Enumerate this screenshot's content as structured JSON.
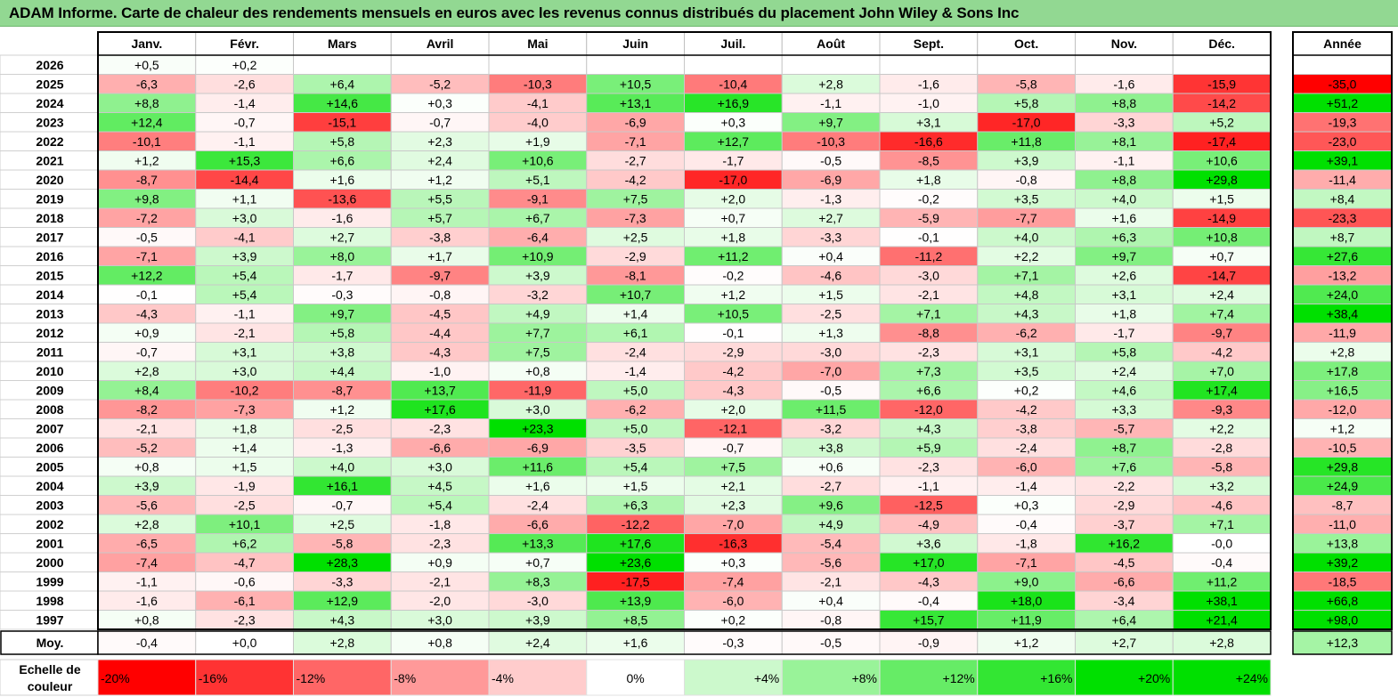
{
  "title": "ADAM Informe. Carte de chaleur des rendements mensuels en euros avec les revenus connus distribués du placement John Wiley & Sons Inc",
  "chart_data": {
    "type": "heatmap",
    "months": [
      "Janv.",
      "Févr.",
      "Mars",
      "Avril",
      "Mai",
      "Juin",
      "Juil.",
      "Août",
      "Sept.",
      "Oct.",
      "Nov.",
      "Déc."
    ],
    "year_header": "Année",
    "rows": [
      {
        "year": "2026",
        "values": [
          "+0,5",
          "+0,2",
          "",
          "",
          "",
          "",
          "",
          "",
          "",
          "",
          "",
          ""
        ],
        "annual": ""
      },
      {
        "year": "2025",
        "values": [
          "-6,3",
          "-2,6",
          "+6,4",
          "-5,2",
          "-10,3",
          "+10,5",
          "-10,4",
          "+2,8",
          "-1,6",
          "-5,8",
          "-1,6",
          "-15,9"
        ],
        "annual": "-35,0"
      },
      {
        "year": "2024",
        "values": [
          "+8,8",
          "-1,4",
          "+14,6",
          "+0,3",
          "-4,1",
          "+13,1",
          "+16,9",
          "-1,1",
          "-1,0",
          "+5,8",
          "+8,8",
          "-14,2"
        ],
        "annual": "+51,2"
      },
      {
        "year": "2023",
        "values": [
          "+12,4",
          "-0,7",
          "-15,1",
          "-0,7",
          "-4,0",
          "-6,9",
          "+0,3",
          "+9,7",
          "+3,1",
          "-17,0",
          "-3,3",
          "+5,2"
        ],
        "annual": "-19,3"
      },
      {
        "year": "2022",
        "values": [
          "-10,1",
          "-1,1",
          "+5,8",
          "+2,3",
          "+1,9",
          "-7,1",
          "+12,7",
          "-10,3",
          "-16,6",
          "+11,8",
          "+8,1",
          "-17,4"
        ],
        "annual": "-23,0"
      },
      {
        "year": "2021",
        "values": [
          "+1,2",
          "+15,3",
          "+6,6",
          "+2,4",
          "+10,6",
          "-2,7",
          "-1,7",
          "-0,5",
          "-8,5",
          "+3,9",
          "-1,1",
          "+10,6"
        ],
        "annual": "+39,1"
      },
      {
        "year": "2020",
        "values": [
          "-8,7",
          "-14,4",
          "+1,6",
          "+1,2",
          "+5,1",
          "-4,2",
          "-17,0",
          "-6,9",
          "+1,8",
          "-0,8",
          "+8,8",
          "+29,8"
        ],
        "annual": "-11,4"
      },
      {
        "year": "2019",
        "values": [
          "+9,8",
          "+1,1",
          "-13,6",
          "+5,5",
          "-9,1",
          "+7,5",
          "+2,0",
          "-1,3",
          "-0,2",
          "+3,5",
          "+4,0",
          "+1,5"
        ],
        "annual": "+8,4"
      },
      {
        "year": "2018",
        "values": [
          "-7,2",
          "+3,0",
          "-1,6",
          "+5,7",
          "+6,7",
          "-7,3",
          "+0,7",
          "+2,7",
          "-5,9",
          "-7,7",
          "+1,6",
          "-14,9"
        ],
        "annual": "-23,3"
      },
      {
        "year": "2017",
        "values": [
          "-0,5",
          "-4,1",
          "+2,7",
          "-3,8",
          "-6,4",
          "+2,5",
          "+1,8",
          "-3,3",
          "-0,1",
          "+4,0",
          "+6,3",
          "+10,8"
        ],
        "annual": "+8,7"
      },
      {
        "year": "2016",
        "values": [
          "-7,1",
          "+3,9",
          "+8,0",
          "+1,7",
          "+10,9",
          "-2,9",
          "+11,2",
          "+0,4",
          "-11,2",
          "+2,2",
          "+9,7",
          "+0,7"
        ],
        "annual": "+27,6"
      },
      {
        "year": "2015",
        "values": [
          "+12,2",
          "+5,4",
          "-1,7",
          "-9,7",
          "+3,9",
          "-8,1",
          "-0,2",
          "-4,6",
          "-3,0",
          "+7,1",
          "+2,6",
          "-14,7"
        ],
        "annual": "-13,2"
      },
      {
        "year": "2014",
        "values": [
          "-0,1",
          "+5,4",
          "-0,3",
          "-0,8",
          "-3,2",
          "+10,7",
          "+1,2",
          "+1,5",
          "-2,1",
          "+4,8",
          "+3,1",
          "+2,4"
        ],
        "annual": "+24,0"
      },
      {
        "year": "2013",
        "values": [
          "-4,3",
          "-1,1",
          "+9,7",
          "-4,5",
          "+4,9",
          "+1,4",
          "+10,5",
          "-2,5",
          "+7,1",
          "+4,3",
          "+1,8",
          "+7,4"
        ],
        "annual": "+38,4"
      },
      {
        "year": "2012",
        "values": [
          "+0,9",
          "-2,1",
          "+5,8",
          "-4,4",
          "+7,7",
          "+6,1",
          "-0,1",
          "+1,3",
          "-8,8",
          "-6,2",
          "-1,7",
          "-9,7"
        ],
        "annual": "-11,9"
      },
      {
        "year": "2011",
        "values": [
          "-0,7",
          "+3,1",
          "+3,8",
          "-4,3",
          "+7,5",
          "-2,4",
          "-2,9",
          "-3,0",
          "-2,3",
          "+3,1",
          "+5,8",
          "-4,2"
        ],
        "annual": "+2,8"
      },
      {
        "year": "2010",
        "values": [
          "+2,8",
          "+3,0",
          "+4,4",
          "-1,0",
          "+0,8",
          "-1,4",
          "-4,2",
          "-7,0",
          "+7,3",
          "+3,5",
          "+2,4",
          "+7,0"
        ],
        "annual": "+17,8"
      },
      {
        "year": "2009",
        "values": [
          "+8,4",
          "-10,2",
          "-8,7",
          "+13,7",
          "-11,9",
          "+5,0",
          "-4,3",
          "-0,5",
          "+6,6",
          "+0,2",
          "+4,6",
          "+17,4"
        ],
        "annual": "+16,5"
      },
      {
        "year": "2008",
        "values": [
          "-8,2",
          "-7,3",
          "+1,2",
          "+17,6",
          "+3,0",
          "-6,2",
          "+2,0",
          "+11,5",
          "-12,0",
          "-4,2",
          "+3,3",
          "-9,3"
        ],
        "annual": "-12,0"
      },
      {
        "year": "2007",
        "values": [
          "-2,1",
          "+1,8",
          "-2,5",
          "-2,3",
          "+23,3",
          "+5,0",
          "-12,1",
          "-3,2",
          "+4,3",
          "-3,8",
          "-5,7",
          "+2,2"
        ],
        "annual": "+1,2"
      },
      {
        "year": "2006",
        "values": [
          "-5,2",
          "+1,4",
          "-1,3",
          "-6,6",
          "-6,9",
          "-3,5",
          "-0,7",
          "+3,8",
          "+5,9",
          "-2,4",
          "+8,7",
          "-2,8"
        ],
        "annual": "-10,5"
      },
      {
        "year": "2005",
        "values": [
          "+0,8",
          "+1,5",
          "+4,0",
          "+3,0",
          "+11,6",
          "+5,4",
          "+7,5",
          "+0,6",
          "-2,3",
          "-6,0",
          "+7,6",
          "-5,8"
        ],
        "annual": "+29,8"
      },
      {
        "year": "2004",
        "values": [
          "+3,9",
          "-1,9",
          "+16,1",
          "+4,5",
          "+1,6",
          "+1,5",
          "+2,1",
          "-2,7",
          "-1,1",
          "-1,4",
          "-2,2",
          "+3,2"
        ],
        "annual": "+24,9"
      },
      {
        "year": "2003",
        "values": [
          "-5,6",
          "-2,5",
          "-0,7",
          "+5,4",
          "-2,4",
          "+6,3",
          "+2,3",
          "+9,6",
          "-12,5",
          "+0,3",
          "-2,9",
          "-4,6"
        ],
        "annual": "-8,7"
      },
      {
        "year": "2002",
        "values": [
          "+2,8",
          "+10,1",
          "+2,5",
          "-1,8",
          "-6,6",
          "-12,2",
          "-7,0",
          "+4,9",
          "-4,9",
          "-0,4",
          "-3,7",
          "+7,1"
        ],
        "annual": "-11,0"
      },
      {
        "year": "2001",
        "values": [
          "-6,5",
          "+6,2",
          "-5,8",
          "-2,3",
          "+13,3",
          "+17,6",
          "-16,3",
          "-5,4",
          "+3,6",
          "-1,8",
          "+16,2",
          "-0,0"
        ],
        "annual": "+13,8"
      },
      {
        "year": "2000",
        "values": [
          "-7,4",
          "-4,7",
          "+28,3",
          "+0,9",
          "+0,7",
          "+23,6",
          "+0,3",
          "-5,6",
          "+17,0",
          "-7,1",
          "-4,5",
          "-0,4"
        ],
        "annual": "+39,2"
      },
      {
        "year": "1999",
        "values": [
          "-1,1",
          "-0,6",
          "-3,3",
          "-2,1",
          "+8,3",
          "-17,5",
          "-7,4",
          "-2,1",
          "-4,3",
          "+9,0",
          "-6,6",
          "+11,2"
        ],
        "annual": "-18,5"
      },
      {
        "year": "1998",
        "values": [
          "-1,6",
          "-6,1",
          "+12,9",
          "-2,0",
          "-3,0",
          "+13,9",
          "-6,0",
          "+0,4",
          "-0,4",
          "+18,0",
          "-3,4",
          "+38,1"
        ],
        "annual": "+66,8"
      },
      {
        "year": "1997",
        "values": [
          "+0,8",
          "-2,3",
          "+4,3",
          "+3,0",
          "+3,9",
          "+8,5",
          "+0,2",
          "-0,8",
          "+15,7",
          "+11,9",
          "+6,4",
          "+21,4"
        ],
        "annual": "+98,0"
      }
    ],
    "average": {
      "label": "Moy.",
      "values": [
        "-0,4",
        "+0,0",
        "+2,8",
        "+0,8",
        "+2,4",
        "+1,6",
        "-0,3",
        "-0,5",
        "-0,9",
        "+1,2",
        "+2,7",
        "+2,8"
      ],
      "annual": "+12,3"
    },
    "legend": {
      "label_line1": "Echelle de",
      "label_line2": "couleur",
      "steps": [
        "-20%",
        "-16%",
        "-12%",
        "-8%",
        "-4%",
        "0%",
        "+4%",
        "+8%",
        "+12%",
        "+16%",
        "+20%",
        "+24%"
      ],
      "step_values": [
        -20,
        -16,
        -12,
        -8,
        -4,
        0,
        4,
        8,
        12,
        16,
        20,
        24
      ]
    },
    "colors": {
      "negative_max": "#ff0000",
      "positive_max": "#00e000",
      "neutral": "#ffffff",
      "title_bar": "#92d892"
    }
  }
}
